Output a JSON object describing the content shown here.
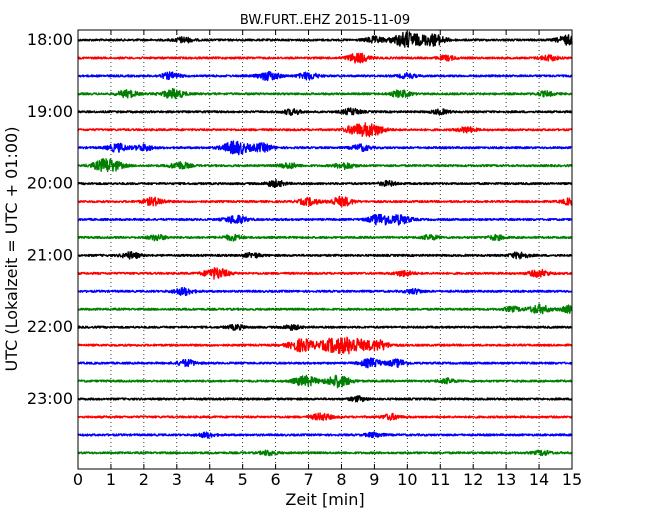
{
  "chart_data": {
    "type": "line",
    "title": "BW.FURT..EHZ 2015-11-09",
    "xlabel": "Zeit  [min]",
    "ylabel": "UTC (Lokalzeit = UTC + 01:00)",
    "xlim": [
      0,
      15
    ],
    "xticks": [
      "0",
      "1",
      "2",
      "3",
      "4",
      "5",
      "6",
      "7",
      "8",
      "9",
      "10",
      "11",
      "12",
      "13",
      "14",
      "15"
    ],
    "yticks": [
      "18:00",
      "19:00",
      "20:00",
      "21:00",
      "22:00",
      "23:00"
    ],
    "grid": "vertical-dotted",
    "series_colors": [
      "#000000",
      "#ff0000",
      "#0000ff",
      "#008000"
    ],
    "traces": [
      {
        "start": "18:00",
        "color": "#000000",
        "events": [
          [
            10.0,
            1.0
          ],
          [
            10.8,
            0.7
          ],
          [
            9.0,
            0.4
          ],
          [
            3.2,
            0.35
          ],
          [
            14.9,
            0.6
          ]
        ]
      },
      {
        "start": "18:15",
        "color": "#ff0000",
        "events": [
          [
            8.5,
            0.6
          ],
          [
            11.2,
            0.3
          ],
          [
            14.3,
            0.35
          ]
        ]
      },
      {
        "start": "18:30",
        "color": "#0000ff",
        "events": [
          [
            2.8,
            0.4
          ],
          [
            5.8,
            0.55
          ],
          [
            7.0,
            0.45
          ],
          [
            10.0,
            0.3
          ]
        ]
      },
      {
        "start": "18:45",
        "color": "#008000",
        "events": [
          [
            1.5,
            0.45
          ],
          [
            2.9,
            0.6
          ],
          [
            9.8,
            0.45
          ],
          [
            14.2,
            0.3
          ]
        ]
      },
      {
        "start": "19:00",
        "color": "#000000",
        "events": [
          [
            6.5,
            0.35
          ],
          [
            8.3,
            0.4
          ],
          [
            11.0,
            0.3
          ]
        ]
      },
      {
        "start": "19:15",
        "color": "#ff0000",
        "events": [
          [
            8.9,
            0.8
          ],
          [
            8.4,
            0.5
          ],
          [
            11.8,
            0.35
          ]
        ]
      },
      {
        "start": "19:30",
        "color": "#0000ff",
        "events": [
          [
            1.2,
            0.5
          ],
          [
            2.0,
            0.4
          ],
          [
            4.8,
            0.85
          ],
          [
            5.6,
            0.5
          ],
          [
            8.6,
            0.4
          ]
        ]
      },
      {
        "start": "19:45",
        "color": "#008000",
        "events": [
          [
            0.9,
            0.9
          ],
          [
            3.1,
            0.45
          ],
          [
            6.4,
            0.35
          ],
          [
            8.1,
            0.4
          ]
        ]
      },
      {
        "start": "20:00",
        "color": "#000000",
        "events": [
          [
            6.0,
            0.4
          ],
          [
            9.4,
            0.3
          ]
        ]
      },
      {
        "start": "20:15",
        "color": "#ff0000",
        "events": [
          [
            2.3,
            0.5
          ],
          [
            7.0,
            0.45
          ],
          [
            8.0,
            0.6
          ],
          [
            15.0,
            0.45
          ]
        ]
      },
      {
        "start": "20:30",
        "color": "#0000ff",
        "events": [
          [
            4.8,
            0.55
          ],
          [
            9.2,
            0.7
          ],
          [
            9.8,
            0.55
          ]
        ]
      },
      {
        "start": "20:45",
        "color": "#008000",
        "events": [
          [
            2.4,
            0.35
          ],
          [
            4.7,
            0.35
          ],
          [
            10.7,
            0.3
          ],
          [
            12.7,
            0.3
          ]
        ]
      },
      {
        "start": "21:00",
        "color": "#000000",
        "events": [
          [
            1.6,
            0.4
          ],
          [
            5.3,
            0.3
          ],
          [
            13.4,
            0.4
          ]
        ]
      },
      {
        "start": "21:15",
        "color": "#ff0000",
        "events": [
          [
            4.2,
            0.7
          ],
          [
            9.9,
            0.35
          ],
          [
            14.0,
            0.45
          ]
        ]
      },
      {
        "start": "21:30",
        "color": "#0000ff",
        "events": [
          [
            3.2,
            0.45
          ],
          [
            10.2,
            0.3
          ]
        ]
      },
      {
        "start": "21:45",
        "color": "#008000",
        "events": [
          [
            13.2,
            0.3
          ],
          [
            14.0,
            0.55
          ],
          [
            15.0,
            0.5
          ]
        ]
      },
      {
        "start": "22:00",
        "color": "#000000",
        "events": [
          [
            4.8,
            0.3
          ],
          [
            6.5,
            0.3
          ]
        ]
      },
      {
        "start": "22:15",
        "color": "#ff0000",
        "events": [
          [
            6.8,
            0.8
          ],
          [
            7.7,
            0.75
          ],
          [
            8.3,
            1.0
          ],
          [
            9.1,
            0.65
          ]
        ]
      },
      {
        "start": "22:30",
        "color": "#0000ff",
        "events": [
          [
            3.3,
            0.4
          ],
          [
            8.9,
            0.55
          ],
          [
            9.7,
            0.45
          ]
        ]
      },
      {
        "start": "22:45",
        "color": "#008000",
        "events": [
          [
            6.9,
            0.65
          ],
          [
            7.9,
            0.75
          ],
          [
            11.2,
            0.3
          ]
        ]
      },
      {
        "start": "23:00",
        "color": "#000000",
        "events": [
          [
            8.5,
            0.3
          ]
        ]
      },
      {
        "start": "23:15",
        "color": "#ff0000",
        "events": [
          [
            7.4,
            0.45
          ],
          [
            9.5,
            0.35
          ]
        ]
      },
      {
        "start": "23:30",
        "color": "#0000ff",
        "events": [
          [
            3.9,
            0.3
          ],
          [
            9.0,
            0.3
          ]
        ]
      },
      {
        "start": "23:45",
        "color": "#008000",
        "events": [
          [
            5.8,
            0.3
          ],
          [
            14.1,
            0.3
          ]
        ]
      }
    ]
  }
}
